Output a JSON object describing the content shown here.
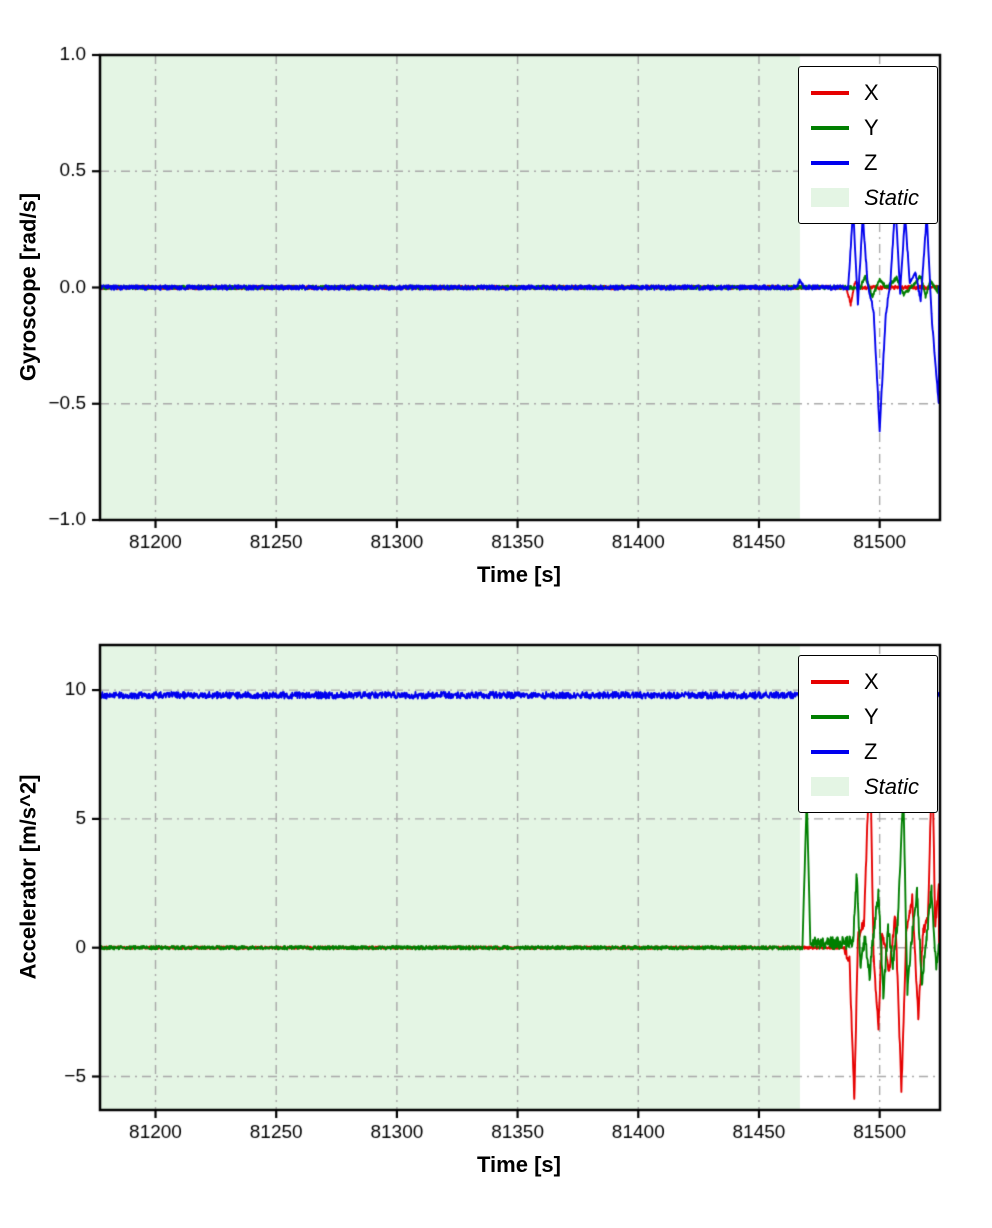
{
  "figure": {
    "background": "#ffffff"
  },
  "chart_data": [
    {
      "type": "line",
      "id": "gyroscope",
      "ylabel": "Gyroscope [rad/s]",
      "xlabel": "Time [s]",
      "xlim": [
        81177,
        81525
      ],
      "ylim": [
        -1.0,
        1.0
      ],
      "xticks": [
        81200,
        81250,
        81300,
        81350,
        81400,
        81450,
        81500
      ],
      "xtick_labels": [
        "81200",
        "81250",
        "81300",
        "81350",
        "81400",
        "81450",
        "81500"
      ],
      "ytick_values": [
        -1.0,
        -0.5,
        0.0,
        0.5,
        1.0
      ],
      "ytick_labels": [
        "−1.0",
        "−0.5",
        "0.0",
        "0.5",
        "1.0"
      ],
      "grid": {
        "color": "#a9a9a9",
        "dash": [
          9,
          5,
          2,
          5
        ]
      },
      "static_region": {
        "from": 81177,
        "to": 81467,
        "color": "#e4f5e4",
        "label": "Static"
      },
      "legend": {
        "position": "upper right",
        "entries": [
          {
            "label": "X",
            "color": "#e60000",
            "type": "line",
            "italic": false
          },
          {
            "label": "Y",
            "color": "#007f00",
            "type": "line",
            "italic": false
          },
          {
            "label": "Z",
            "color": "#0000ee",
            "type": "line",
            "italic": false
          },
          {
            "label": "Static",
            "color": "#e4f5e4",
            "type": "patch",
            "italic": true
          }
        ]
      },
      "series": [
        {
          "name": "X",
          "color": "#e60000",
          "baseline": 0,
          "noise": 0.008,
          "events": [
            [
              81486,
              0
            ],
            [
              81488,
              -0.07
            ],
            [
              81490,
              0.03
            ],
            [
              81492,
              0
            ]
          ]
        },
        {
          "name": "Y",
          "color": "#007f00",
          "baseline": 0,
          "noise": 0.008,
          "events": [
            [
              81492,
              0
            ],
            [
              81494,
              0.05
            ],
            [
              81497,
              -0.04
            ],
            [
              81500,
              0.03
            ],
            [
              81503,
              0
            ],
            [
              81507,
              0.04
            ],
            [
              81510,
              -0.03
            ],
            [
              81513,
              0
            ],
            [
              81517,
              0.05
            ],
            [
              81519,
              -0.04
            ],
            [
              81521,
              0.03
            ],
            [
              81524,
              -0.02
            ]
          ]
        },
        {
          "name": "Z",
          "color": "#0000ee",
          "baseline": 0,
          "noise": 0.01,
          "events": [
            [
              81465.5,
              0
            ],
            [
              81467,
              0.03
            ],
            [
              81468.5,
              0
            ],
            [
              81487,
              0
            ],
            [
              81489,
              0.34
            ],
            [
              81491,
              -0.07
            ],
            [
              81493,
              0.31
            ],
            [
              81495,
              0.02
            ],
            [
              81497.5,
              -0.1
            ],
            [
              81500,
              -0.61
            ],
            [
              81502.5,
              -0.12
            ],
            [
              81504.5,
              0.03
            ],
            [
              81506.5,
              0.36
            ],
            [
              81508.5,
              -0.02
            ],
            [
              81510.5,
              0.31
            ],
            [
              81512.5,
              0.02
            ],
            [
              81515,
              0.06
            ],
            [
              81517,
              -0.06
            ],
            [
              81519.5,
              0.31
            ],
            [
              81521.5,
              -0.12
            ],
            [
              81524.5,
              -0.5
            ]
          ]
        }
      ]
    },
    {
      "type": "line",
      "id": "accelerator",
      "ylabel": "Accelerator [m/s^2]",
      "xlabel": "Time [s]",
      "xlim": [
        81177,
        81525
      ],
      "ylim": [
        -6.3,
        11.75
      ],
      "xticks": [
        81200,
        81250,
        81300,
        81350,
        81400,
        81450,
        81500
      ],
      "xtick_labels": [
        "81200",
        "81250",
        "81300",
        "81350",
        "81400",
        "81450",
        "81500"
      ],
      "ytick_values": [
        -5,
        0,
        5,
        10
      ],
      "ytick_labels": [
        "−5",
        "0",
        "5",
        "10"
      ],
      "grid": {
        "color": "#a9a9a9",
        "dash": [
          9,
          5,
          2,
          5
        ]
      },
      "static_region": {
        "from": 81177,
        "to": 81467,
        "color": "#e4f5e4",
        "label": "Static"
      },
      "legend": {
        "position": "upper right",
        "entries": [
          {
            "label": "X",
            "color": "#e60000",
            "type": "line",
            "italic": false
          },
          {
            "label": "Y",
            "color": "#007f00",
            "type": "line",
            "italic": false
          },
          {
            "label": "Z",
            "color": "#0000ee",
            "type": "line",
            "italic": false
          },
          {
            "label": "Static",
            "color": "#e4f5e4",
            "type": "patch",
            "italic": true
          }
        ]
      },
      "series": [
        {
          "name": "X",
          "color": "#e60000",
          "baseline": 0,
          "noise": 0.05,
          "noise_boost": {
            "from": 81485,
            "amp": 0.18
          },
          "events": [
            [
              81485,
              0
            ],
            [
              81487.5,
              -0.5
            ],
            [
              81489.5,
              -5.9
            ],
            [
              81491,
              0.4
            ],
            [
              81493.5,
              1.0
            ],
            [
              81496,
              7.7
            ],
            [
              81497.5,
              -0.4
            ],
            [
              81499.5,
              -3.1
            ],
            [
              81501,
              0.5
            ],
            [
              81504,
              -0.9
            ],
            [
              81506.5,
              1.3
            ],
            [
              81509,
              -5.6
            ],
            [
              81511,
              0.5
            ],
            [
              81513.5,
              1.9
            ],
            [
              81516,
              -2.7
            ],
            [
              81518,
              0.6
            ],
            [
              81520,
              1.2
            ],
            [
              81521.8,
              7.6
            ],
            [
              81523,
              0.8
            ],
            [
              81524.5,
              2.3
            ]
          ]
        },
        {
          "name": "Y",
          "color": "#007f00",
          "baseline": 0,
          "noise": 0.07,
          "noise_boost": {
            "from": 81472,
            "amp": 0.25
          },
          "events": [
            [
              81468,
              0
            ],
            [
              81469.8,
              5.85
            ],
            [
              81471.3,
              0.15
            ],
            [
              81489,
              0.2
            ],
            [
              81490.5,
              2.85
            ],
            [
              81492,
              -0.7
            ],
            [
              81494,
              0.4
            ],
            [
              81495.8,
              -1.2
            ],
            [
              81497.5,
              0.6
            ],
            [
              81499.5,
              2.1
            ],
            [
              81501.5,
              -1.9
            ],
            [
              81503.5,
              0.7
            ],
            [
              81505.5,
              -0.6
            ],
            [
              81507.5,
              1.1
            ],
            [
              81509.8,
              5.95
            ],
            [
              81511.5,
              -1.7
            ],
            [
              81513.5,
              0.5
            ],
            [
              81515.5,
              2.1
            ],
            [
              81517.5,
              -1.3
            ],
            [
              81519.5,
              0.4
            ],
            [
              81521.5,
              2.3
            ],
            [
              81523.5,
              -0.9
            ],
            [
              81524.5,
              0.3
            ]
          ]
        },
        {
          "name": "Z",
          "color": "#0000ee",
          "baseline": 9.8,
          "noise": 0.13,
          "events": []
        }
      ]
    }
  ]
}
